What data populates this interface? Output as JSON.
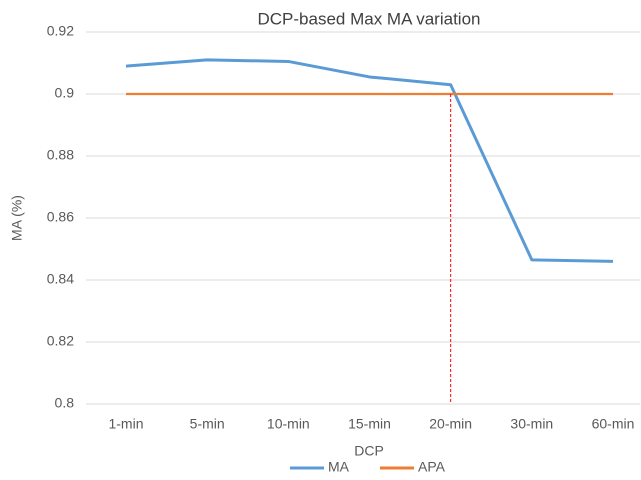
{
  "chart_data": {
    "type": "line",
    "title": "DCP-based Max MA variation",
    "x_label": "DCP",
    "y_label": "MA (%)",
    "categories": [
      "1-min",
      "5-min",
      "10-min",
      "15-min",
      "20-min",
      "30-min",
      "60-min"
    ],
    "series": [
      {
        "name": "MA",
        "color": "#5b9bd5",
        "values": [
          0.909,
          0.911,
          0.9105,
          0.9055,
          0.903,
          0.8465,
          0.846
        ]
      },
      {
        "name": "APA",
        "color": "#ed7d31",
        "values": [
          0.9,
          0.9,
          0.9,
          0.9,
          0.9,
          0.9,
          0.9
        ]
      }
    ],
    "ylim": [
      0.8,
      0.92
    ],
    "yticks": [
      0.8,
      0.82,
      0.84,
      0.86,
      0.88,
      0.9,
      0.92
    ],
    "grid": true,
    "legend": "bottom",
    "marker_line": {
      "at": "20-min",
      "color": "#ff0000"
    }
  }
}
